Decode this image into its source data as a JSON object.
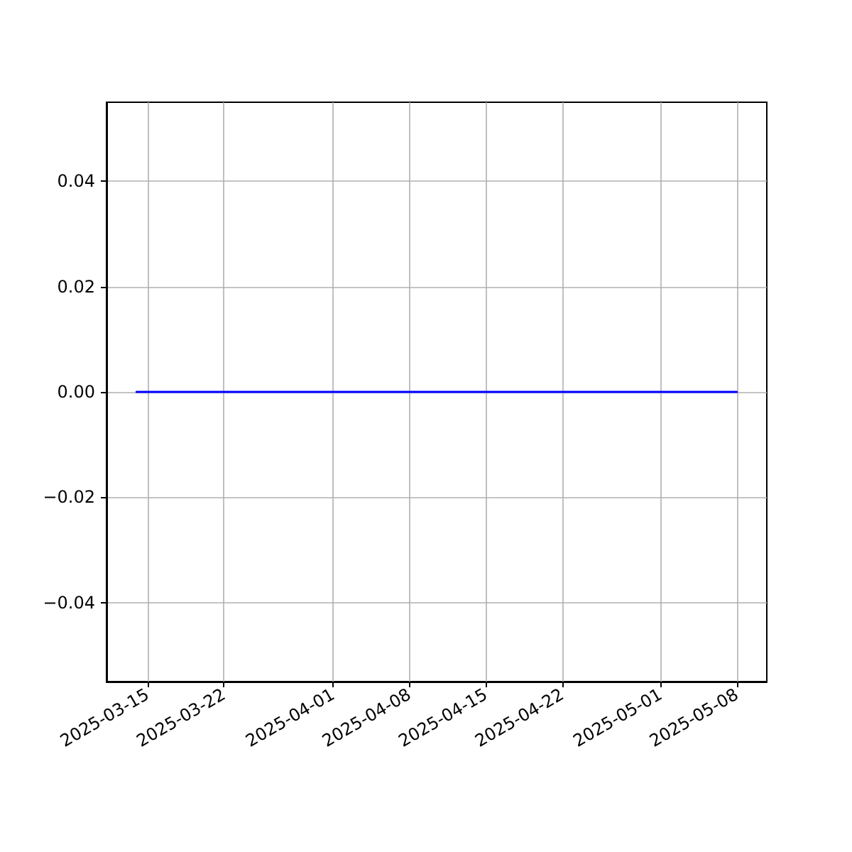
{
  "chart_data": {
    "type": "line",
    "x": [
      "2025-03-14",
      "2025-05-08"
    ],
    "series": [
      {
        "color": "#0000ff",
        "values": [
          0,
          0
        ]
      }
    ],
    "xlim": [
      "2025-03-11T06:00",
      "2025-05-10T18:00"
    ],
    "xticks": [
      "2025-03-15",
      "2025-03-22",
      "2025-04-01",
      "2025-04-08",
      "2025-04-15",
      "2025-04-22",
      "2025-05-01",
      "2025-05-08"
    ],
    "ylim": [
      -0.055,
      0.055
    ],
    "yticks": [
      {
        "value": -0.04,
        "label": "−0.04"
      },
      {
        "value": -0.02,
        "label": "−0.02"
      },
      {
        "value": 0,
        "label": "0.00"
      },
      {
        "value": 0.02,
        "label": "0.02"
      },
      {
        "value": 0.04,
        "label": "0.04"
      }
    ],
    "grid": true,
    "marker": "none",
    "line_style": "solid"
  }
}
